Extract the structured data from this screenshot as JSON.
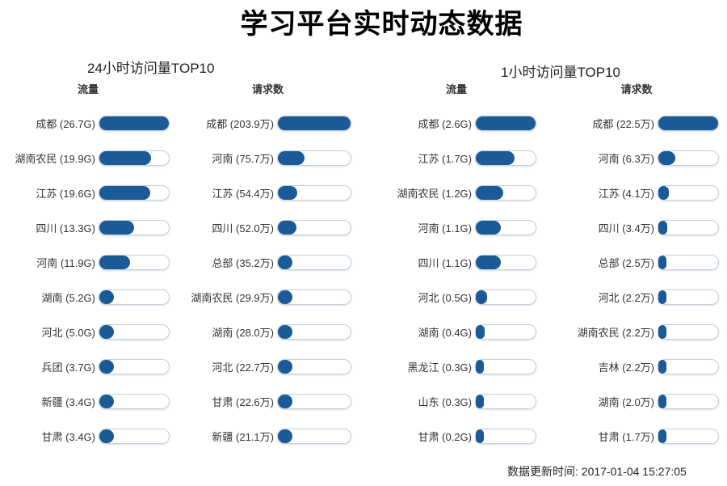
{
  "page_title": "学习平台实时动态数据",
  "sections": [
    {
      "title": "24小时访问量TOP10"
    },
    {
      "title": "1小时访问量TOP10"
    }
  ],
  "footer": {
    "update_time_text": "数据更新时间: 2017-01-04 15:27:05"
  },
  "colors": {
    "bar_fill": "#1a5a96",
    "track_border": "#c5cfd8",
    "title_color": "#000000"
  },
  "chart_data": [
    {
      "type": "bar",
      "orientation": "horizontal",
      "section": "24小时访问量TOP10",
      "title": "流量",
      "unit": "G",
      "xlim": [
        0,
        26.7
      ],
      "grid": false,
      "categories": [
        "成都",
        "湖南农民",
        "江苏",
        "四川",
        "河南",
        "湖南",
        "河北",
        "兵团",
        "新疆",
        "甘肃"
      ],
      "values": [
        26.7,
        19.9,
        19.6,
        13.3,
        11.9,
        5.2,
        5.0,
        3.7,
        3.4,
        3.4
      ],
      "value_labels": [
        "26.7G",
        "19.9G",
        "19.6G",
        "13.3G",
        "11.9G",
        "5.2G",
        "5.0G",
        "3.7G",
        "3.4G",
        "3.4G"
      ]
    },
    {
      "type": "bar",
      "orientation": "horizontal",
      "section": "24小时访问量TOP10",
      "title": "请求数",
      "unit": "万",
      "xlim": [
        0,
        203.9
      ],
      "grid": false,
      "categories": [
        "成都",
        "河南",
        "江苏",
        "四川",
        "总部",
        "湖南农民",
        "湖南",
        "河北",
        "甘肃",
        "新疆"
      ],
      "values": [
        203.9,
        75.7,
        54.4,
        52.0,
        35.2,
        29.9,
        28.0,
        22.7,
        22.6,
        21.1
      ],
      "value_labels": [
        "203.9万",
        "75.7万",
        "54.4万",
        "52.0万",
        "35.2万",
        "29.9万",
        "28.0万",
        "22.7万",
        "22.6万",
        "21.1万"
      ]
    },
    {
      "type": "bar",
      "orientation": "horizontal",
      "section": "1小时访问量TOP10",
      "title": "流量",
      "unit": "G",
      "xlim": [
        0,
        2.6
      ],
      "grid": false,
      "categories": [
        "成都",
        "江苏",
        "湖南农民",
        "河南",
        "四川",
        "河北",
        "湖南",
        "黑龙江",
        "山东",
        "甘肃"
      ],
      "values": [
        2.6,
        1.7,
        1.2,
        1.1,
        1.1,
        0.5,
        0.4,
        0.3,
        0.3,
        0.2
      ],
      "value_labels": [
        "2.6G",
        "1.7G",
        "1.2G",
        "1.1G",
        "1.1G",
        "0.5G",
        "0.4G",
        "0.3G",
        "0.3G",
        "0.2G"
      ]
    },
    {
      "type": "bar",
      "orientation": "horizontal",
      "section": "1小时访问量TOP10",
      "title": "请求数",
      "unit": "万",
      "xlim": [
        0,
        22.5
      ],
      "grid": false,
      "categories": [
        "成都",
        "河南",
        "江苏",
        "四川",
        "总部",
        "河北",
        "湖南农民",
        "吉林",
        "湖南",
        "甘肃"
      ],
      "values": [
        22.5,
        6.3,
        4.1,
        3.4,
        2.5,
        2.2,
        2.2,
        2.2,
        2.0,
        1.7
      ],
      "value_labels": [
        "22.5万",
        "6.3万",
        "4.1万",
        "3.4万",
        "2.5万",
        "2.2万",
        "2.2万",
        "2.2万",
        "2.0万",
        "1.7万"
      ]
    }
  ]
}
